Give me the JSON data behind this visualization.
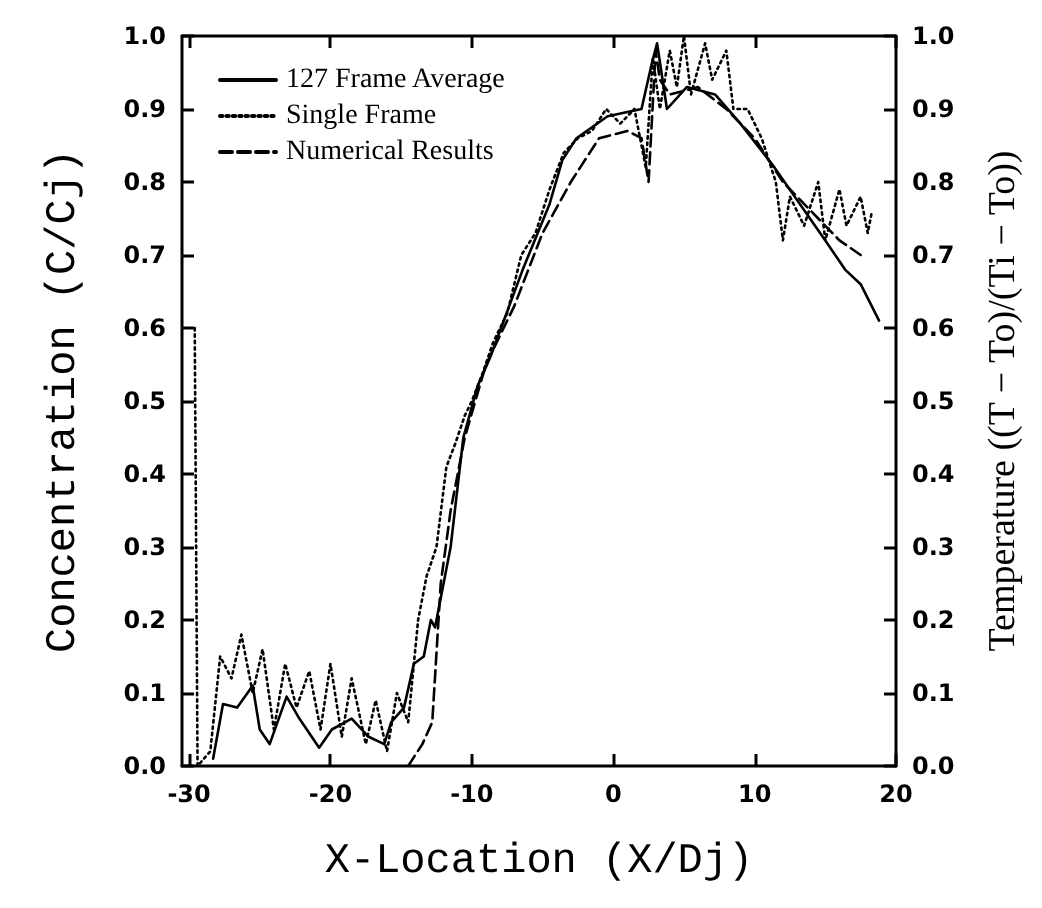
{
  "chart_data": {
    "type": "line",
    "xlabel": "X-Location (X/Dj)",
    "ylabel": "Concentration (C/Cj)",
    "y2label": "Temperature ((T − To)/(Ti − To))",
    "xlim": [
      -30.5,
      20
    ],
    "xticks": [
      -30,
      -20,
      -10,
      0,
      10,
      20
    ],
    "ylim": [
      0,
      1
    ],
    "yticks": [
      {
        "value": 0,
        "label": "0.0"
      },
      0.1,
      0.2,
      0.3,
      0.4,
      0.5,
      0.6,
      0.7,
      0.8,
      0.9,
      {
        "value": 1,
        "label": "1.0"
      }
    ],
    "y2lim": [
      0,
      1
    ],
    "y2ticks": [
      {
        "value": 0,
        "label": "0.0"
      },
      0.1,
      0.2,
      0.3,
      0.4,
      0.5,
      0.6,
      0.7,
      0.8,
      0.9,
      {
        "value": 1,
        "label": "1.0"
      }
    ],
    "grid": false,
    "legend": "top left",
    "marker": "none",
    "series": [
      {
        "name": "127 Frame Average",
        "color": "#000000",
        "line_style": "solid",
        "x": [
          -28.3,
          -27.6,
          -26.6,
          -25.5,
          -25.0,
          -24.3,
          -23.1,
          -22.2,
          -20.8,
          -19.9,
          -18.5,
          -17.3,
          -16.2,
          -15.7,
          -14.8,
          -14.1,
          -13.4,
          -12.9,
          -12.6,
          -11.5,
          -10.6,
          -9.6,
          -8.7,
          -6.4,
          -4.5,
          -3.6,
          -2.6,
          -0.4,
          2.0,
          2.7,
          3.1,
          3.8,
          5.2,
          7.2,
          9.0,
          11.4,
          13.2,
          15.0,
          16.4,
          17.5,
          18.8
        ],
        "values": [
          0.01,
          0.085,
          0.08,
          0.11,
          0.05,
          0.03,
          0.095,
          0.065,
          0.025,
          0.05,
          0.065,
          0.04,
          0.03,
          0.06,
          0.08,
          0.14,
          0.15,
          0.2,
          0.19,
          0.3,
          0.45,
          0.52,
          0.56,
          0.68,
          0.77,
          0.83,
          0.86,
          0.89,
          0.9,
          0.96,
          0.99,
          0.9,
          0.93,
          0.92,
          0.88,
          0.82,
          0.77,
          0.72,
          0.68,
          0.66,
          0.61
        ]
      },
      {
        "name": "Single Frame",
        "color": "#000000",
        "line_style": "dotted",
        "x": [
          -29.6,
          -29.4,
          -28.5,
          -27.8,
          -27,
          -26.3,
          -25.5,
          -24.8,
          -24,
          -23.2,
          -22.4,
          -21.5,
          -20.7,
          -20,
          -19.2,
          -18.5,
          -17.5,
          -16.8,
          -16,
          -15.3,
          -14.5,
          -13.8,
          -13.2,
          -12.5,
          -11.8,
          -11.2,
          -10.5,
          -10,
          -9.2,
          -8.5,
          -7.5,
          -6.5,
          -5.5,
          -4.5,
          -3.5,
          -2.5,
          -1.5,
          -0.5,
          0.5,
          1.5,
          2.3,
          2.8,
          3.3,
          4,
          4.5,
          5,
          5.5,
          6.5,
          7,
          8,
          8.5,
          9.5,
          10.5,
          11.5,
          12,
          12.5,
          13.5,
          14.5,
          15,
          16,
          16.5,
          17.5,
          18,
          18.3
        ],
        "values": [
          0.6,
          0,
          0.02,
          0.15,
          0.12,
          0.18,
          0.1,
          0.16,
          0.05,
          0.14,
          0.08,
          0.13,
          0.05,
          0.14,
          0.04,
          0.12,
          0.03,
          0.09,
          0.02,
          0.1,
          0.06,
          0.2,
          0.26,
          0.3,
          0.41,
          0.44,
          0.48,
          0.5,
          0.54,
          0.58,
          0.62,
          0.7,
          0.73,
          0.79,
          0.84,
          0.86,
          0.87,
          0.9,
          0.88,
          0.9,
          0.82,
          0.97,
          0.9,
          0.98,
          0.93,
          1.0,
          0.92,
          0.99,
          0.94,
          0.98,
          0.9,
          0.9,
          0.86,
          0.8,
          0.72,
          0.78,
          0.74,
          0.8,
          0.72,
          0.79,
          0.74,
          0.78,
          0.73,
          0.76
        ]
      },
      {
        "name": "Numerical Results",
        "color": "#000000",
        "line_style": "dashed",
        "x": [
          -14.5,
          -13.5,
          -12.8,
          -12.2,
          -11.5,
          -10.5,
          -9,
          -7,
          -5,
          -3,
          -1,
          1,
          2,
          2.5,
          3,
          3.3,
          4,
          6,
          8,
          10,
          12,
          14,
          16,
          17.5
        ],
        "values": [
          0,
          0.03,
          0.06,
          0.25,
          0.35,
          0.45,
          0.55,
          0.63,
          0.73,
          0.8,
          0.86,
          0.87,
          0.86,
          0.8,
          0.98,
          0.94,
          0.92,
          0.93,
          0.9,
          0.86,
          0.8,
          0.76,
          0.72,
          0.7
        ]
      }
    ]
  }
}
